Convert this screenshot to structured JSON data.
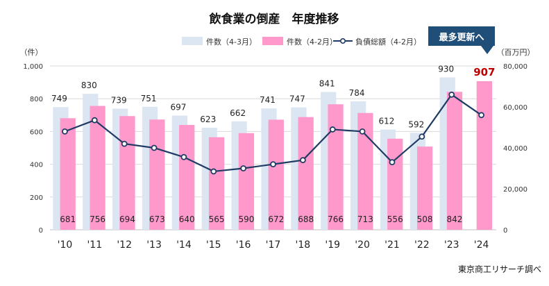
{
  "chart_data": {
    "type": "bar",
    "title": "飲食業の倒産　年度推移",
    "categories": [
      "'10",
      "'11",
      "'12",
      "'13",
      "'14",
      "'15",
      "'16",
      "'17",
      "'18",
      "'19",
      "'20",
      "'21",
      "'22",
      "'23",
      "'24"
    ],
    "series": [
      {
        "name": "件数（4-3月）",
        "kind": "bar",
        "axis": "left",
        "color": "#dce6f2",
        "values": [
          749,
          830,
          739,
          751,
          697,
          623,
          662,
          741,
          747,
          841,
          784,
          612,
          592,
          930,
          null
        ]
      },
      {
        "name": "件数（4-2月）",
        "kind": "bar",
        "axis": "left",
        "color": "#ff99cc",
        "values": [
          681,
          756,
          694,
          673,
          640,
          565,
          590,
          672,
          688,
          766,
          713,
          556,
          508,
          842,
          907
        ]
      },
      {
        "name": "負債総額（4-2月）",
        "kind": "line",
        "axis": "right",
        "color": "#1f3b64",
        "values": [
          48000,
          53500,
          42000,
          40000,
          35500,
          28500,
          30000,
          32000,
          34000,
          49000,
          48000,
          33000,
          45500,
          66000,
          56000
        ]
      }
    ],
    "left_axis": {
      "label": "（件）",
      "ylim": [
        0,
        1000
      ],
      "ticks": [
        "0",
        "200",
        "400",
        "600",
        "800",
        "1,000"
      ]
    },
    "right_axis": {
      "label": "（百万円）",
      "ylim": [
        0,
        80000
      ],
      "ticks": [
        "0",
        "20,000",
        "40,000",
        "60,000",
        "80,000"
      ]
    },
    "legend_position": "top-center",
    "grid": true,
    "highlight": {
      "category": "'24",
      "label": "907",
      "color": "#c00000"
    },
    "callout": "最多更新へ",
    "source": "東京商工リサーチ調べ"
  }
}
